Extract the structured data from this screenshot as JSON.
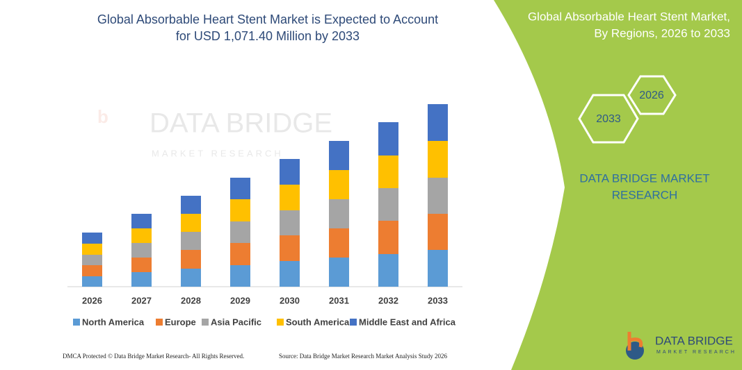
{
  "chart_data": {
    "type": "stacked_bar",
    "title": [
      "Global Absorbable Heart Stent Market is Expected to Account",
      "for USD 1,071.40 Million by 2033"
    ],
    "categories": [
      "2026",
      "2027",
      "2028",
      "2029",
      "2030",
      "2031",
      "2032",
      "2033"
    ],
    "series": [
      {
        "name": "North America",
        "color": "#5b9bd5",
        "values": [
          15,
          21,
          26,
          31,
          37,
          42,
          47,
          53
        ]
      },
      {
        "name": "Europe",
        "color": "#ed7d31",
        "values": [
          16,
          21,
          27,
          32,
          37,
          42,
          48,
          52
        ]
      },
      {
        "name": "Asia Pacific",
        "color": "#a5a5a5",
        "values": [
          15,
          21,
          26,
          31,
          36,
          42,
          47,
          52
        ]
      },
      {
        "name": "South America",
        "color": "#ffc000",
        "values": [
          16,
          21,
          26,
          32,
          37,
          42,
          47,
          53
        ]
      },
      {
        "name": "Middle East and Africa",
        "color": "#4472c4",
        "values": [
          16,
          21,
          26,
          31,
          37,
          42,
          48,
          53
        ]
      }
    ],
    "ylim": [
      0,
      263
    ],
    "legend": "bottom"
  },
  "watermark": {
    "brand": "DATA BRIDGE",
    "tagline": "MARKET RESEARCH"
  },
  "panel": {
    "title": [
      "Global Absorbable Heart Stent Market,",
      "By Regions, 2026 to 2033"
    ],
    "hexagons": [
      "2033",
      "2026"
    ],
    "brand": [
      "DATA BRIDGE MARKET",
      "RESEARCH"
    ]
  },
  "logo": {
    "brand": "DATA BRIDGE",
    "tagline": "MARKET RESEARCH"
  },
  "footer": {
    "left": "DMCA Protected © Data Bridge Market Research- All Rights Reserved.",
    "right": "Source: Data Bridge Market Research  Market Analysis Study 2026"
  }
}
